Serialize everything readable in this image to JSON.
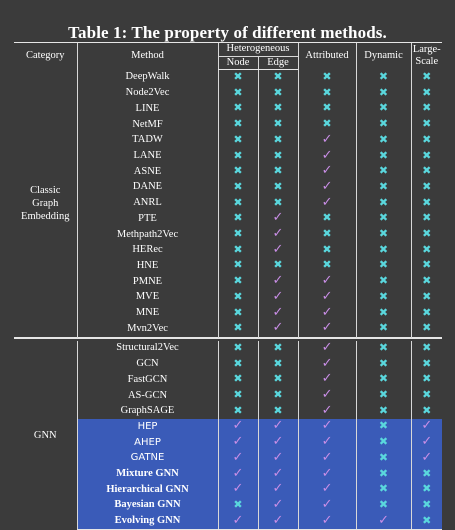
{
  "title": "Table 1:   The property of different methods.",
  "headers": {
    "category": "Category",
    "method": "Method",
    "heterogeneous": "Heterogeneous",
    "node": "Node",
    "edge": "Edge",
    "attributed": "Attributed",
    "dynamic": "Dynamic",
    "large_scale": "Large-Scale"
  },
  "symbols": {
    "no": "✖",
    "yes": "✓"
  },
  "groups": [
    {
      "category": "Classic Graph Embedding",
      "category_lines": [
        "Classic",
        "Graph",
        "Embedding"
      ],
      "rows": [
        {
          "method": "DeepWalk",
          "node": "no",
          "edge": "no",
          "attributed": "no",
          "dynamic": "no",
          "large_scale": "no"
        },
        {
          "method": "Node2Vec",
          "node": "no",
          "edge": "no",
          "attributed": "no",
          "dynamic": "no",
          "large_scale": "no"
        },
        {
          "method": "LINE",
          "node": "no",
          "edge": "no",
          "attributed": "no",
          "dynamic": "no",
          "large_scale": "no"
        },
        {
          "method": "NetMF",
          "node": "no",
          "edge": "no",
          "attributed": "no",
          "dynamic": "no",
          "large_scale": "no"
        },
        {
          "method": "TADW",
          "node": "no",
          "edge": "no",
          "attributed": "yes",
          "dynamic": "no",
          "large_scale": "no"
        },
        {
          "method": "LANE",
          "node": "no",
          "edge": "no",
          "attributed": "yes",
          "dynamic": "no",
          "large_scale": "no"
        },
        {
          "method": "ASNE",
          "node": "no",
          "edge": "no",
          "attributed": "yes",
          "dynamic": "no",
          "large_scale": "no"
        },
        {
          "method": "DANE",
          "node": "no",
          "edge": "no",
          "attributed": "yes",
          "dynamic": "no",
          "large_scale": "no"
        },
        {
          "method": "ANRL",
          "node": "no",
          "edge": "no",
          "attributed": "yes",
          "dynamic": "no",
          "large_scale": "no"
        },
        {
          "method": "PTE",
          "node": "no",
          "edge": "yes",
          "attributed": "no",
          "dynamic": "no",
          "large_scale": "no"
        },
        {
          "method": "Methpath2Vec",
          "node": "no",
          "edge": "yes",
          "attributed": "no",
          "dynamic": "no",
          "large_scale": "no"
        },
        {
          "method": "HERec",
          "node": "no",
          "edge": "yes",
          "attributed": "no",
          "dynamic": "no",
          "large_scale": "no"
        },
        {
          "method": "HNE",
          "node": "no",
          "edge": "no",
          "attributed": "no",
          "dynamic": "no",
          "large_scale": "no"
        },
        {
          "method": "PMNE",
          "node": "no",
          "edge": "yes",
          "attributed": "yes",
          "dynamic": "no",
          "large_scale": "no"
        },
        {
          "method": "MVE",
          "node": "no",
          "edge": "yes",
          "attributed": "yes",
          "dynamic": "no",
          "large_scale": "no"
        },
        {
          "method": "MNE",
          "node": "no",
          "edge": "yes",
          "attributed": "yes",
          "dynamic": "no",
          "large_scale": "no"
        },
        {
          "method": "Mvn2Vec",
          "node": "no",
          "edge": "yes",
          "attributed": "yes",
          "dynamic": "no",
          "large_scale": "no"
        }
      ]
    },
    {
      "category": "GNN",
      "category_lines": [
        "GNN"
      ],
      "rows": [
        {
          "method": "Structural2Vec",
          "node": "no",
          "edge": "no",
          "attributed": "yes",
          "dynamic": "no",
          "large_scale": "no"
        },
        {
          "method": "GCN",
          "node": "no",
          "edge": "no",
          "attributed": "yes",
          "dynamic": "no",
          "large_scale": "no"
        },
        {
          "method": "FastGCN",
          "node": "no",
          "edge": "no",
          "attributed": "yes",
          "dynamic": "no",
          "large_scale": "no"
        },
        {
          "method": "AS-GCN",
          "node": "no",
          "edge": "no",
          "attributed": "yes",
          "dynamic": "no",
          "large_scale": "no"
        },
        {
          "method": "GraphSAGE",
          "node": "no",
          "edge": "no",
          "attributed": "yes",
          "dynamic": "no",
          "large_scale": "no"
        },
        {
          "method": "HEP",
          "node": "yes",
          "edge": "yes",
          "attributed": "yes",
          "dynamic": "no",
          "large_scale": "yes",
          "highlight": true,
          "style": "sans"
        },
        {
          "method": "AHEP",
          "node": "yes",
          "edge": "yes",
          "attributed": "yes",
          "dynamic": "no",
          "large_scale": "yes",
          "highlight": true,
          "style": "sans"
        },
        {
          "method": "GATNE",
          "node": "yes",
          "edge": "yes",
          "attributed": "yes",
          "dynamic": "no",
          "large_scale": "yes",
          "highlight": true,
          "style": "sans"
        },
        {
          "method": "Mixture GNN",
          "node": "yes",
          "edge": "yes",
          "attributed": "yes",
          "dynamic": "no",
          "large_scale": "no",
          "highlight": true,
          "style": "bold"
        },
        {
          "method": "Hierarchical GNN",
          "node": "yes",
          "edge": "yes",
          "attributed": "yes",
          "dynamic": "no",
          "large_scale": "no",
          "highlight": true,
          "style": "bold"
        },
        {
          "method": "Bayesian GNN",
          "node": "no",
          "edge": "yes",
          "attributed": "yes",
          "dynamic": "no",
          "large_scale": "no",
          "highlight": true,
          "style": "bold"
        },
        {
          "method": "Evolving GNN",
          "node": "yes",
          "edge": "yes",
          "attributed": "yes",
          "dynamic": "yes",
          "large_scale": "no",
          "highlight": true,
          "style": "bold"
        }
      ]
    }
  ]
}
